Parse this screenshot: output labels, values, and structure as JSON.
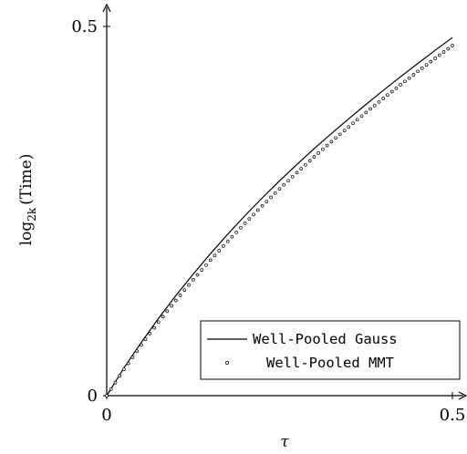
{
  "chart_data": {
    "type": "line",
    "xlabel": "τ",
    "ylabel": {
      "log": "log",
      "sub": "2k",
      "rest": "(Time)"
    },
    "xlim": [
      0,
      0.5
    ],
    "ylim": [
      0,
      0.5
    ],
    "x_ticks": [
      {
        "value": 0,
        "label": "0"
      },
      {
        "value": 0.5,
        "label": "0.5"
      }
    ],
    "y_ticks": [
      {
        "value": 0,
        "label": "0"
      },
      {
        "value": 0.5,
        "label": "0.5"
      }
    ],
    "grid": false,
    "legend_position": "bottom-right",
    "series": [
      {
        "name": "Well-Pooled Gauss",
        "style": "solid-line",
        "color": "#000000",
        "x": [
          0,
          0.025,
          0.05,
          0.075,
          0.1,
          0.125,
          0.15,
          0.175,
          0.2,
          0.225,
          0.25,
          0.275,
          0.3,
          0.325,
          0.35,
          0.375,
          0.4,
          0.425,
          0.45,
          0.475,
          0.5
        ],
        "y": [
          0,
          0.0375,
          0.0721,
          0.1047,
          0.1354,
          0.1645,
          0.1922,
          0.2186,
          0.2438,
          0.2679,
          0.291,
          0.3131,
          0.3344,
          0.355,
          0.3749,
          0.3944,
          0.4133,
          0.4318,
          0.4499,
          0.4676,
          0.485
        ]
      },
      {
        "name": "Well-Pooled MMT",
        "style": "circle-markers",
        "color": "#000000",
        "x": [
          0,
          0.025,
          0.05,
          0.075,
          0.1,
          0.125,
          0.15,
          0.175,
          0.2,
          0.225,
          0.25,
          0.275,
          0.3,
          0.325,
          0.35,
          0.375,
          0.4,
          0.425,
          0.45,
          0.475,
          0.5
        ],
        "y": [
          0,
          0.0355,
          0.0685,
          0.0996,
          0.129,
          0.1569,
          0.1835,
          0.209,
          0.2335,
          0.2571,
          0.28,
          0.302,
          0.3233,
          0.344,
          0.364,
          0.3835,
          0.4025,
          0.421,
          0.4391,
          0.4568,
          0.4741
        ]
      }
    ]
  }
}
